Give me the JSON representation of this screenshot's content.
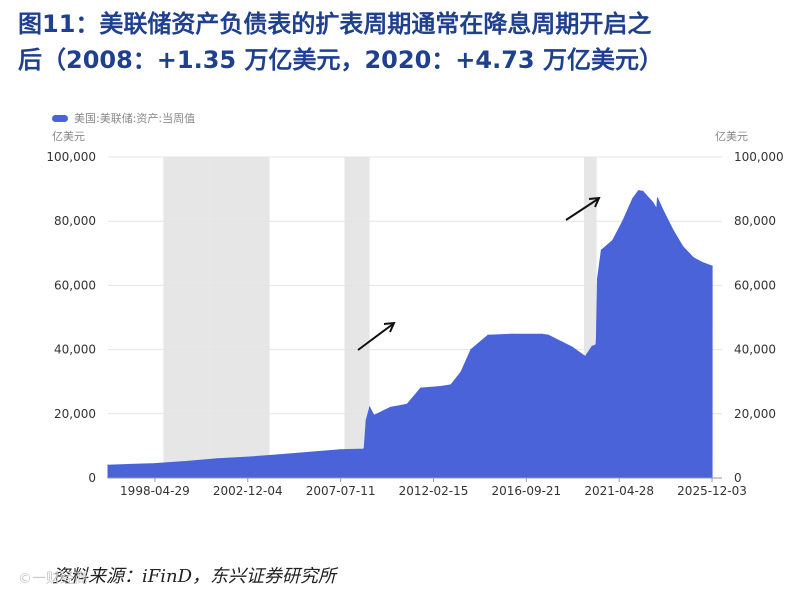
{
  "header": {
    "title_line1": "图11：美联储资产负债表的扩表周期通常在降息周期开启之",
    "title_line2": "后（2008：+1.35 万亿美元，2020：+4.73 万亿美元）"
  },
  "legend": {
    "label": "美国:美联储:资产:当周值"
  },
  "units": {
    "left": "亿美元",
    "right": "亿美元"
  },
  "source": "资料来源：iFinD，东兴证券研究所",
  "watermark": "©一财经商",
  "colors": {
    "area": "#4a63d8",
    "shade": "#e6e6e6",
    "grid": "#e4e4e4",
    "tick": "#333333",
    "arrow": "#111111"
  },
  "chart_data": {
    "type": "area",
    "title": "",
    "xlabel": "",
    "ylabel": "亿美元",
    "ylabel_right": "亿美元",
    "ylim": [
      0,
      100000
    ],
    "xlim": [
      "1996-01-01",
      "2026-06-01"
    ],
    "grid": true,
    "legend_position": "top-left",
    "yticks": [
      "0",
      "20,000",
      "40,000",
      "60,000",
      "80,000",
      "100,000"
    ],
    "ytick_values": [
      0,
      20000,
      40000,
      60000,
      80000,
      100000
    ],
    "xticks": [
      "1998-04-29",
      "2002-12-04",
      "2007-07-11",
      "2012-02-15",
      "2016-09-21",
      "2021-04-28",
      "2025-12-03"
    ],
    "series": [
      {
        "name": "美国:美联储:资产:当周值",
        "x": [
          "1996-01-01",
          "1998-04-29",
          "2000-01-01",
          "2001-06-01",
          "2002-12-04",
          "2004-06-01",
          "2006-01-01",
          "2007-07-11",
          "2008-08-27",
          "2008-09-10",
          "2008-10-15",
          "2008-12-17",
          "2009-03-04",
          "2009-12-30",
          "2010-10-27",
          "2011-06-29",
          "2012-06-27",
          "2012-12-26",
          "2013-06-26",
          "2013-12-25",
          "2014-10-29",
          "2016-01-06",
          "2017-06-28",
          "2017-10-25",
          "2018-12-26",
          "2019-08-28",
          "2019-09-18",
          "2019-12-25",
          "2020-03-04",
          "2020-03-11",
          "2020-04-01",
          "2020-06-10",
          "2020-12-30",
          "2021-06-30",
          "2021-12-29",
          "2022-04-13",
          "2022-06-29",
          "2022-12-28",
          "2023-03-08",
          "2023-03-22",
          "2023-06-28",
          "2024-01-03",
          "2024-06-26",
          "2025-01-01",
          "2025-06-25",
          "2025-12-03"
        ],
        "values": [
          4000,
          4500,
          5200,
          6000,
          6500,
          7200,
          8000,
          8800,
          9000,
          9200,
          18000,
          22000,
          19500,
          22000,
          23000,
          28000,
          28500,
          29000,
          33000,
          40000,
          44500,
          44800,
          44800,
          44500,
          40800,
          37800,
          38500,
          41000,
          41500,
          43000,
          62000,
          71000,
          74000,
          80000,
          87000,
          89500,
          89300,
          85800,
          83800,
          87200,
          83500,
          77000,
          72000,
          68600,
          67000,
          66000
        ]
      }
    ],
    "shaded_periods": [
      [
        "1998-09-29",
        "2001-01-03"
      ],
      [
        "2001-01-03",
        "2004-01-01"
      ],
      [
        "2007-09-18",
        "2008-12-16"
      ],
      [
        "2019-07-31",
        "2020-03-15"
      ]
    ]
  }
}
